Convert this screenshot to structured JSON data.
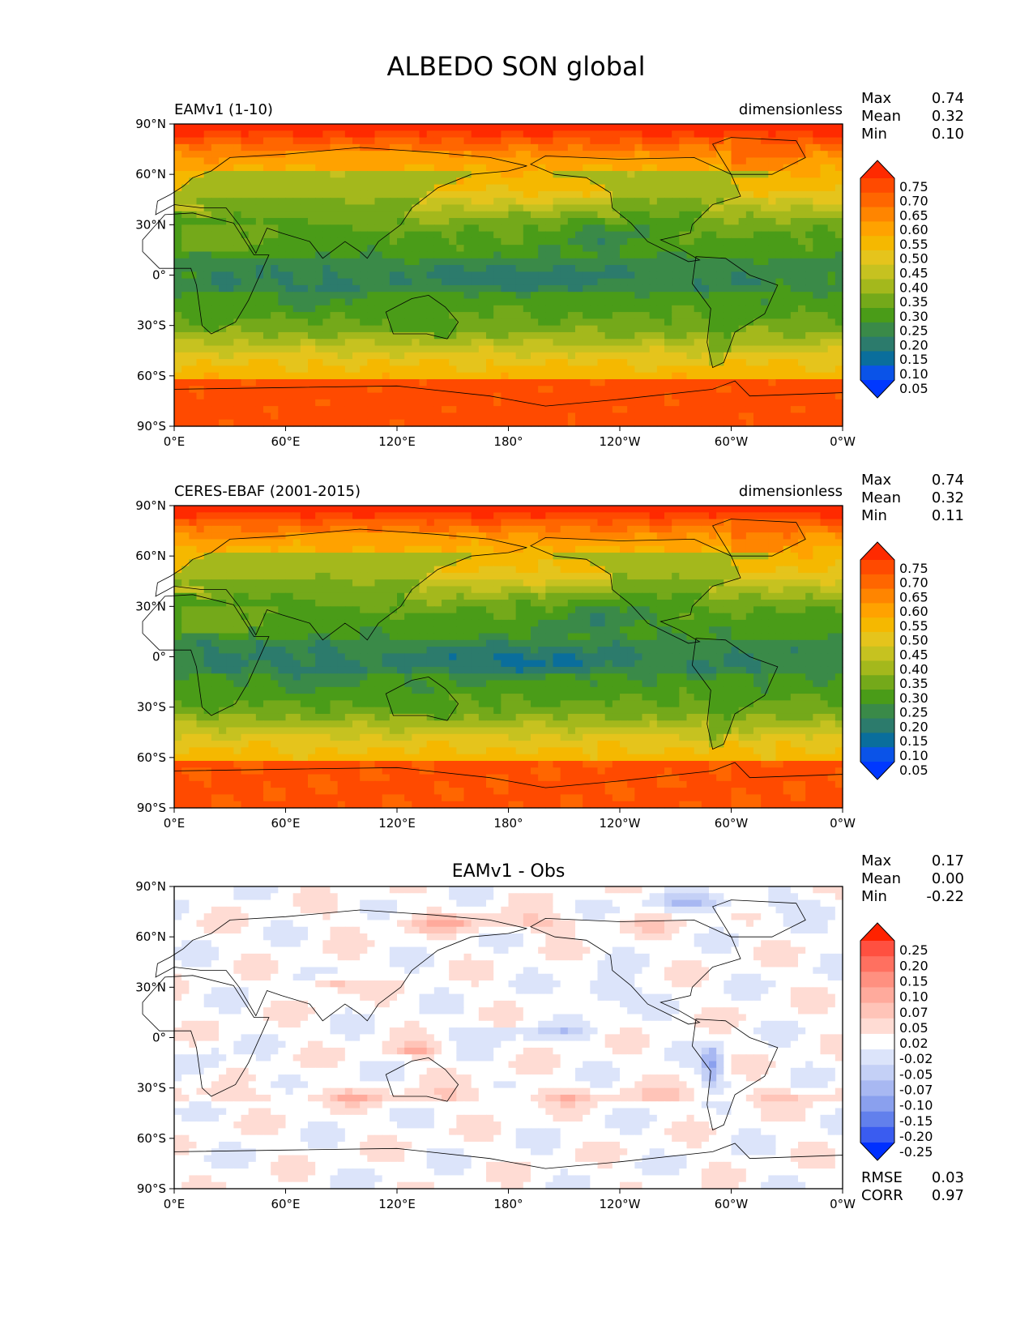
{
  "figure": {
    "title": "ALBEDO SON global"
  },
  "chart_data": [
    {
      "type": "heatmap",
      "panel_id": "test",
      "title": "",
      "left_label": "EAMv1 (1-10)",
      "units": "dimensionless",
      "stats": [
        {
          "label": "Max",
          "value": "0.74"
        },
        {
          "label": "Mean",
          "value": "0.32"
        },
        {
          "label": "Min",
          "value": "0.10"
        }
      ],
      "footer_stats": [],
      "xticks": [
        "0°E",
        "60°E",
        "120°E",
        "180°",
        "120°W",
        "60°W",
        "0°W"
      ],
      "yticks": [
        "90°N",
        "60°N",
        "30°N",
        "0°",
        "30°S",
        "60°S",
        "90°S"
      ],
      "colorbar": {
        "extend": "both",
        "labels": [
          "0.75",
          "0.70",
          "0.65",
          "0.60",
          "0.55",
          "0.50",
          "0.45",
          "0.40",
          "0.35",
          "0.30",
          "0.25",
          "0.20",
          "0.15",
          "0.10",
          "0.05"
        ],
        "colors": [
          "#ff2a00",
          "#ff4a00",
          "#ff6600",
          "#ff8500",
          "#ffa200",
          "#f5b800",
          "#e5c41c",
          "#c6c220",
          "#a4b81c",
          "#74a91a",
          "#4a9c18",
          "#3a8a48",
          "#2c7b6c",
          "#0a6e9c",
          "#0a53e8",
          "#0038ff"
        ]
      },
      "field": {
        "kind": "albedo",
        "variant": "model"
      }
    },
    {
      "type": "heatmap",
      "panel_id": "ref",
      "title": "",
      "left_label": "CERES-EBAF (2001-2015)",
      "units": "dimensionless",
      "stats": [
        {
          "label": "Max",
          "value": "0.74"
        },
        {
          "label": "Mean",
          "value": "0.32"
        },
        {
          "label": "Min",
          "value": "0.11"
        }
      ],
      "footer_stats": [],
      "xticks": [
        "0°E",
        "60°E",
        "120°E",
        "180°",
        "120°W",
        "60°W",
        "0°W"
      ],
      "yticks": [
        "90°N",
        "60°N",
        "30°N",
        "0°",
        "30°S",
        "60°S",
        "90°S"
      ],
      "colorbar": {
        "extend": "both",
        "labels": [
          "0.75",
          "0.70",
          "0.65",
          "0.60",
          "0.55",
          "0.50",
          "0.45",
          "0.40",
          "0.35",
          "0.30",
          "0.25",
          "0.20",
          "0.15",
          "0.10",
          "0.05"
        ],
        "colors": [
          "#ff2a00",
          "#ff4a00",
          "#ff6600",
          "#ff8500",
          "#ffa200",
          "#f5b800",
          "#e5c41c",
          "#c6c220",
          "#a4b81c",
          "#74a91a",
          "#4a9c18",
          "#3a8a48",
          "#2c7b6c",
          "#0a6e9c",
          "#0a53e8",
          "#0038ff"
        ]
      },
      "field": {
        "kind": "albedo",
        "variant": "obs"
      }
    },
    {
      "type": "heatmap",
      "panel_id": "diff",
      "title": "EAMv1 - Obs",
      "left_label": "",
      "units": "",
      "stats": [
        {
          "label": "Max",
          "value": "0.17"
        },
        {
          "label": "Mean",
          "value": "0.00"
        },
        {
          "label": "Min",
          "value": "-0.22"
        }
      ],
      "footer_stats": [
        {
          "label": "RMSE",
          "value": "0.03"
        },
        {
          "label": "CORR",
          "value": "0.97"
        }
      ],
      "xticks": [
        "0°E",
        "60°E",
        "120°E",
        "180°",
        "120°W",
        "60°W",
        "0°W"
      ],
      "yticks": [
        "90°N",
        "60°N",
        "30°N",
        "0°",
        "30°S",
        "60°S",
        "90°S"
      ],
      "colorbar": {
        "extend": "both",
        "labels": [
          "0.25",
          "0.20",
          "0.15",
          "0.10",
          "0.07",
          "0.05",
          "0.02",
          "-0.02",
          "-0.05",
          "-0.07",
          "-0.10",
          "-0.15",
          "-0.20",
          "-0.25"
        ],
        "colors": [
          "#ff2200",
          "#ff5040",
          "#ff7060",
          "#ff9080",
          "#ffaa9c",
          "#ffc4b8",
          "#ffdcd4",
          "#ffffff",
          "#dce4fa",
          "#c4d0f6",
          "#a8b8f2",
          "#8aa0ee",
          "#6280ec",
          "#3a5cf0",
          "#0030ff"
        ]
      },
      "field": {
        "kind": "diff"
      }
    }
  ]
}
